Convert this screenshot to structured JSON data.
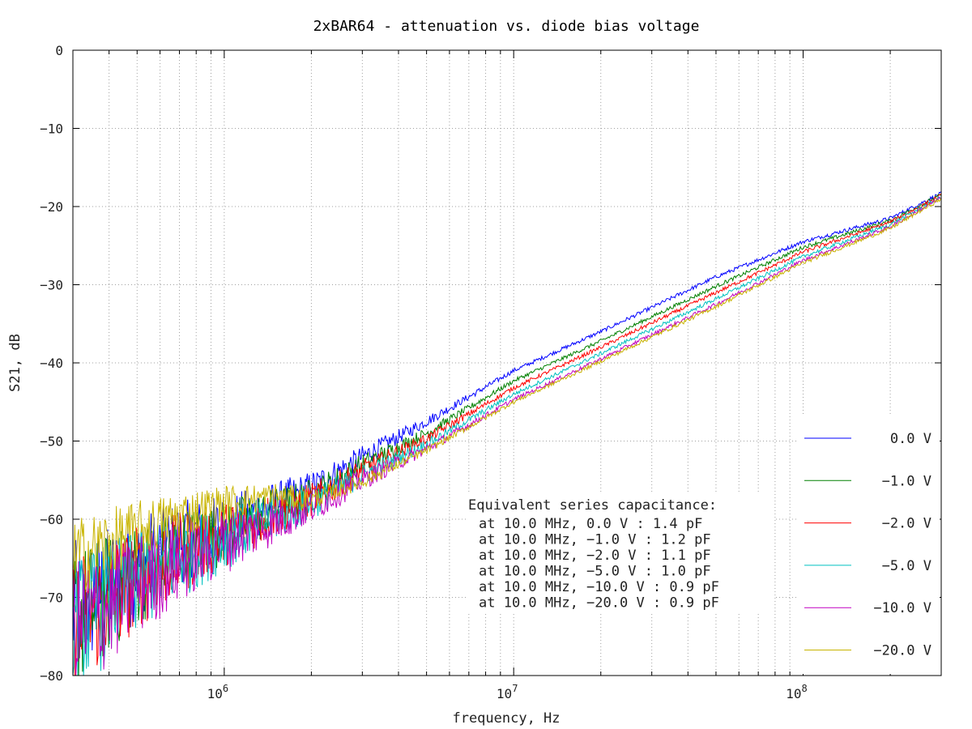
{
  "chart_data": {
    "type": "line",
    "title": "2xBAR64 - attenuation vs. diode bias voltage",
    "xlabel": "frequency, Hz",
    "ylabel": "S21, dB",
    "xscale": "log",
    "xlim": [
      300000,
      300000000
    ],
    "ylim": [
      -80,
      0
    ],
    "grid": true,
    "y_ticks": [
      0,
      -10,
      -20,
      -30,
      -40,
      -50,
      -60,
      -70,
      -80
    ],
    "y_tick_labels": [
      "0",
      "−10",
      "−20",
      "−30",
      "−40",
      "−50",
      "−60",
      "−70",
      "−80"
    ],
    "x_ticks": [
      1000000,
      10000000,
      100000000
    ],
    "x_tick_bases": [
      "10",
      "10",
      "10"
    ],
    "x_tick_exps": [
      "6",
      "7",
      "8"
    ],
    "legend_position": "right",
    "series": [
      {
        "name": "0.0 V",
        "color": "#0000ff",
        "x": [
          300000,
          500000,
          700000,
          1000000,
          2000000,
          3000000,
          5000000,
          10000000,
          20000000,
          50000000,
          100000000,
          200000000,
          300000000
        ],
        "y": [
          -72,
          -66,
          -63,
          -61,
          -56,
          -52,
          -47.5,
          -41,
          -36,
          -29,
          -24.5,
          -21.5,
          -18.3
        ]
      },
      {
        "name": "−1.0 V",
        "color": "#008000",
        "x": [
          300000,
          500000,
          700000,
          1000000,
          2000000,
          3000000,
          5000000,
          10000000,
          20000000,
          50000000,
          100000000,
          200000000,
          300000000
        ],
        "y": [
          -73,
          -67,
          -64,
          -61.5,
          -57,
          -53,
          -49,
          -42.3,
          -37.2,
          -30.2,
          -25.2,
          -21.8,
          -18.5
        ]
      },
      {
        "name": "−2.0 V",
        "color": "#ff0000",
        "x": [
          300000,
          500000,
          700000,
          1000000,
          2000000,
          3000000,
          5000000,
          10000000,
          20000000,
          50000000,
          100000000,
          200000000,
          300000000
        ],
        "y": [
          -73.5,
          -67.5,
          -64.5,
          -62,
          -57.5,
          -53.7,
          -49.7,
          -43.2,
          -38,
          -31,
          -25.8,
          -22,
          -18.6
        ]
      },
      {
        "name": "−5.0 V",
        "color": "#00c0c0",
        "x": [
          300000,
          500000,
          700000,
          1000000,
          2000000,
          3000000,
          5000000,
          10000000,
          20000000,
          50000000,
          100000000,
          200000000,
          300000000
        ],
        "y": [
          -74,
          -68,
          -65,
          -62.5,
          -58,
          -54.4,
          -50.4,
          -44,
          -38.8,
          -31.8,
          -26.4,
          -22.3,
          -18.8
        ]
      },
      {
        "name": "−10.0 V",
        "color": "#c000c0",
        "x": [
          300000,
          500000,
          700000,
          1000000,
          2000000,
          3000000,
          5000000,
          10000000,
          20000000,
          50000000,
          100000000,
          200000000,
          300000000
        ],
        "y": [
          -74.5,
          -68.5,
          -65.5,
          -63,
          -58.5,
          -55,
          -51,
          -44.7,
          -39.5,
          -32.5,
          -26.9,
          -22.6,
          -18.9
        ]
      },
      {
        "name": "−20.0 V",
        "color": "#c8b400",
        "x": [
          300000,
          400000,
          500000,
          700000,
          1000000,
          1500000,
          2000000,
          3000000,
          5000000,
          10000000,
          20000000,
          50000000,
          100000000,
          200000000,
          300000000
        ],
        "y": [
          -65,
          -63,
          -61.5,
          -59.5,
          -58,
          -57,
          -57.5,
          -55.2,
          -51.2,
          -45,
          -39.8,
          -32.8,
          -27.2,
          -22.8,
          -19
        ]
      }
    ],
    "annotation": {
      "header": "Equivalent series capacitance:",
      "lines": [
        "at 10.0 MHz, 0.0 V : 1.4 pF",
        "at 10.0 MHz, −1.0 V : 1.2 pF",
        "at 10.0 MHz, −2.0 V : 1.1 pF",
        "at 10.0 MHz, −5.0 V : 1.0 pF",
        "at 10.0 MHz, −10.0 V : 0.9 pF",
        "at 10.0 MHz, −20.0 V : 0.9 pF"
      ]
    }
  }
}
